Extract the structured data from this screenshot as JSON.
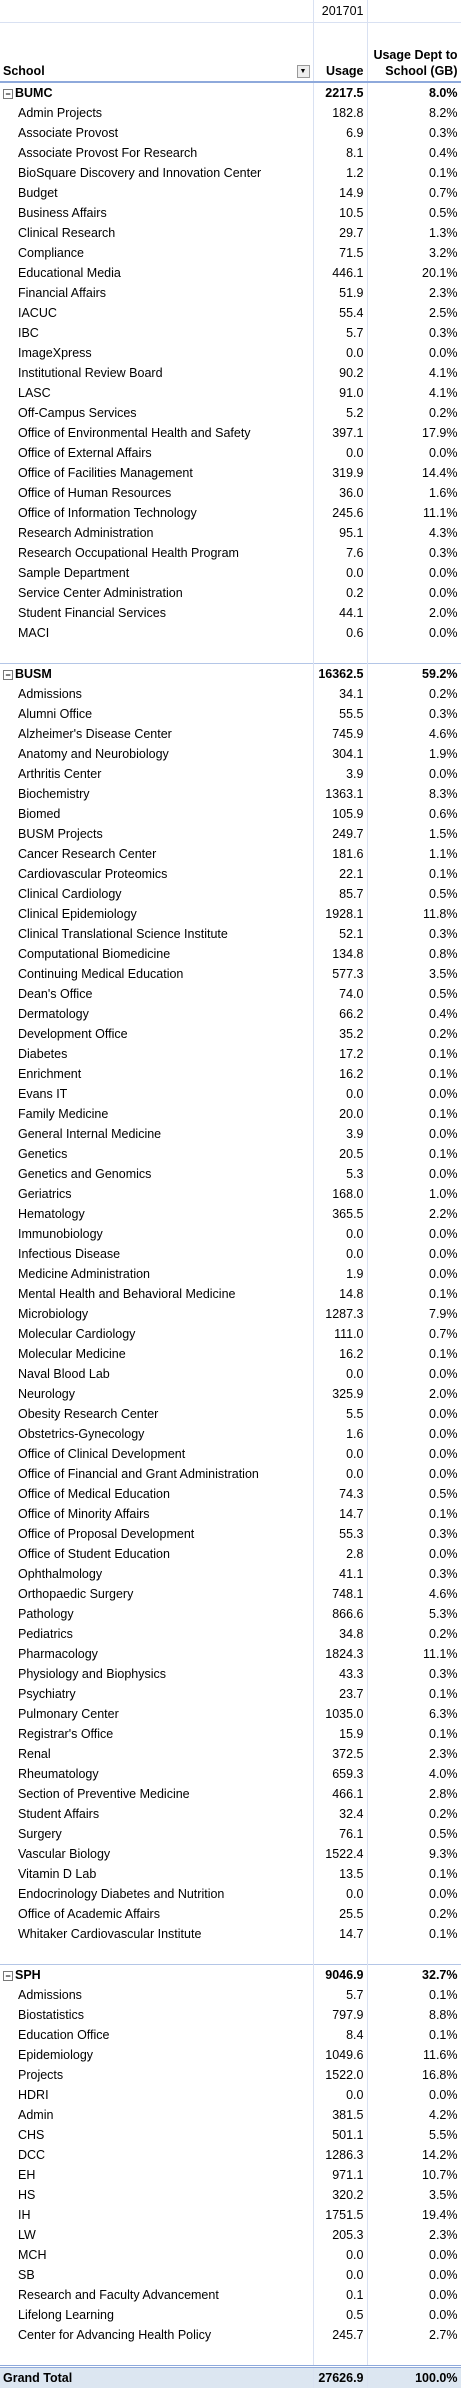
{
  "header": {
    "period": "201701",
    "columns": [
      "School",
      "Usage",
      "Usage Dept to School (GB)"
    ]
  },
  "groups": [
    {
      "name": "BUMC",
      "usage": "2217.5",
      "pct": "8.0%",
      "rows": [
        [
          "Admin Projects",
          "182.8",
          "8.2%"
        ],
        [
          "Associate Provost",
          "6.9",
          "0.3%"
        ],
        [
          "Associate Provost For Research",
          "8.1",
          "0.4%"
        ],
        [
          "BioSquare Discovery and Innovation Center",
          "1.2",
          "0.1%"
        ],
        [
          "Budget",
          "14.9",
          "0.7%"
        ],
        [
          "Business Affairs",
          "10.5",
          "0.5%"
        ],
        [
          "Clinical Research",
          "29.7",
          "1.3%"
        ],
        [
          "Compliance",
          "71.5",
          "3.2%"
        ],
        [
          "Educational Media",
          "446.1",
          "20.1%"
        ],
        [
          "Financial Affairs",
          "51.9",
          "2.3%"
        ],
        [
          "IACUC",
          "55.4",
          "2.5%"
        ],
        [
          "IBC",
          "5.7",
          "0.3%"
        ],
        [
          "ImageXpress",
          "0.0",
          "0.0%"
        ],
        [
          "Institutional Review Board",
          "90.2",
          "4.1%"
        ],
        [
          "LASC",
          "91.0",
          "4.1%"
        ],
        [
          "Off-Campus Services",
          "5.2",
          "0.2%"
        ],
        [
          "Office of Environmental Health and Safety",
          "397.1",
          "17.9%"
        ],
        [
          "Office of External Affairs",
          "0.0",
          "0.0%"
        ],
        [
          "Office of Facilities Management",
          "319.9",
          "14.4%"
        ],
        [
          "Office of Human Resources",
          "36.0",
          "1.6%"
        ],
        [
          "Office of Information Technology",
          "245.6",
          "11.1%"
        ],
        [
          "Research Administration",
          "95.1",
          "4.3%"
        ],
        [
          "Research Occupational Health Program",
          "7.6",
          "0.3%"
        ],
        [
          "Sample Department",
          "0.0",
          "0.0%"
        ],
        [
          "Service Center Administration",
          "0.2",
          "0.0%"
        ],
        [
          "Student Financial Services",
          "44.1",
          "2.0%"
        ],
        [
          "MACI",
          "0.6",
          "0.0%"
        ]
      ]
    },
    {
      "name": "BUSM",
      "usage": "16362.5",
      "pct": "59.2%",
      "rows": [
        [
          "Admissions",
          "34.1",
          "0.2%"
        ],
        [
          "Alumni Office",
          "55.5",
          "0.3%"
        ],
        [
          "Alzheimer's Disease Center",
          "745.9",
          "4.6%"
        ],
        [
          "Anatomy and Neurobiology",
          "304.1",
          "1.9%"
        ],
        [
          "Arthritis Center",
          "3.9",
          "0.0%"
        ],
        [
          "Biochemistry",
          "1363.1",
          "8.3%"
        ],
        [
          "Biomed",
          "105.9",
          "0.6%"
        ],
        [
          "BUSM Projects",
          "249.7",
          "1.5%"
        ],
        [
          "Cancer Research Center",
          "181.6",
          "1.1%"
        ],
        [
          "Cardiovascular Proteomics",
          "22.1",
          "0.1%"
        ],
        [
          "Clinical Cardiology",
          "85.7",
          "0.5%"
        ],
        [
          "Clinical Epidemiology",
          "1928.1",
          "11.8%"
        ],
        [
          "Clinical Translational Science Institute",
          "52.1",
          "0.3%"
        ],
        [
          "Computational Biomedicine",
          "134.8",
          "0.8%"
        ],
        [
          "Continuing Medical Education",
          "577.3",
          "3.5%"
        ],
        [
          "Dean's Office",
          "74.0",
          "0.5%"
        ],
        [
          "Dermatology",
          "66.2",
          "0.4%"
        ],
        [
          "Development Office",
          "35.2",
          "0.2%"
        ],
        [
          "Diabetes",
          "17.2",
          "0.1%"
        ],
        [
          "Enrichment",
          "16.2",
          "0.1%"
        ],
        [
          "Evans IT",
          "0.0",
          "0.0%"
        ],
        [
          "Family Medicine",
          "20.0",
          "0.1%"
        ],
        [
          "General Internal Medicine",
          "3.9",
          "0.0%"
        ],
        [
          "Genetics",
          "20.5",
          "0.1%"
        ],
        [
          "Genetics and Genomics",
          "5.3",
          "0.0%"
        ],
        [
          "Geriatrics",
          "168.0",
          "1.0%"
        ],
        [
          "Hematology",
          "365.5",
          "2.2%"
        ],
        [
          "Immunobiology",
          "0.0",
          "0.0%"
        ],
        [
          "Infectious Disease",
          "0.0",
          "0.0%"
        ],
        [
          "Medicine Administration",
          "1.9",
          "0.0%"
        ],
        [
          "Mental Health and Behavioral Medicine",
          "14.8",
          "0.1%"
        ],
        [
          "Microbiology",
          "1287.3",
          "7.9%"
        ],
        [
          "Molecular Cardiology",
          "111.0",
          "0.7%"
        ],
        [
          "Molecular Medicine",
          "16.2",
          "0.1%"
        ],
        [
          "Naval Blood Lab",
          "0.0",
          "0.0%"
        ],
        [
          "Neurology",
          "325.9",
          "2.0%"
        ],
        [
          "Obesity Research Center",
          "5.5",
          "0.0%"
        ],
        [
          "Obstetrics-Gynecology",
          "1.6",
          "0.0%"
        ],
        [
          "Office of Clinical Development",
          "0.0",
          "0.0%"
        ],
        [
          "Office of Financial and Grant Administration",
          "0.0",
          "0.0%"
        ],
        [
          "Office of Medical Education",
          "74.3",
          "0.5%"
        ],
        [
          "Office of Minority Affairs",
          "14.7",
          "0.1%"
        ],
        [
          "Office of Proposal Development",
          "55.3",
          "0.3%"
        ],
        [
          "Office of Student Education",
          "2.8",
          "0.0%"
        ],
        [
          "Ophthalmology",
          "41.1",
          "0.3%"
        ],
        [
          "Orthopaedic Surgery",
          "748.1",
          "4.6%"
        ],
        [
          "Pathology",
          "866.6",
          "5.3%"
        ],
        [
          "Pediatrics",
          "34.8",
          "0.2%"
        ],
        [
          "Pharmacology",
          "1824.3",
          "11.1%"
        ],
        [
          "Physiology and Biophysics",
          "43.3",
          "0.3%"
        ],
        [
          "Psychiatry",
          "23.7",
          "0.1%"
        ],
        [
          "Pulmonary Center",
          "1035.0",
          "6.3%"
        ],
        [
          "Registrar's Office",
          "15.9",
          "0.1%"
        ],
        [
          "Renal",
          "372.5",
          "2.3%"
        ],
        [
          "Rheumatology",
          "659.3",
          "4.0%"
        ],
        [
          "Section of Preventive Medicine",
          "466.1",
          "2.8%"
        ],
        [
          "Student Affairs",
          "32.4",
          "0.2%"
        ],
        [
          "Surgery",
          "76.1",
          "0.5%"
        ],
        [
          "Vascular Biology",
          "1522.4",
          "9.3%"
        ],
        [
          "Vitamin D Lab",
          "13.5",
          "0.1%"
        ],
        [
          "Endocrinology Diabetes and Nutrition",
          "0.0",
          "0.0%"
        ],
        [
          "Office of Academic Affairs",
          "25.5",
          "0.2%"
        ],
        [
          "Whitaker Cardiovascular Institute",
          "14.7",
          "0.1%"
        ]
      ]
    },
    {
      "name": "SPH",
      "usage": "9046.9",
      "pct": "32.7%",
      "rows": [
        [
          "Admissions",
          "5.7",
          "0.1%"
        ],
        [
          "Biostatistics",
          "797.9",
          "8.8%"
        ],
        [
          "Education Office",
          "8.4",
          "0.1%"
        ],
        [
          "Epidemiology",
          "1049.6",
          "11.6%"
        ],
        [
          "Projects",
          "1522.0",
          "16.8%"
        ],
        [
          "HDRI",
          "0.0",
          "0.0%"
        ],
        [
          "Admin",
          "381.5",
          "4.2%"
        ],
        [
          "CHS",
          "501.1",
          "5.5%"
        ],
        [
          "DCC",
          "1286.3",
          "14.2%"
        ],
        [
          "EH",
          "971.1",
          "10.7%"
        ],
        [
          "HS",
          "320.2",
          "3.5%"
        ],
        [
          "IH",
          "1751.5",
          "19.4%"
        ],
        [
          "LW",
          "205.3",
          "2.3%"
        ],
        [
          "MCH",
          "0.0",
          "0.0%"
        ],
        [
          "SB",
          "0.0",
          "0.0%"
        ],
        [
          "Research and Faculty Advancement",
          "0.1",
          "0.0%"
        ],
        [
          "Lifelong Learning",
          "0.5",
          "0.0%"
        ],
        [
          "Center for Advancing Health Policy",
          "245.7",
          "2.7%"
        ]
      ]
    }
  ],
  "grand_total": {
    "label": "Grand Total",
    "usage": "27626.9",
    "pct": "100.0%"
  }
}
